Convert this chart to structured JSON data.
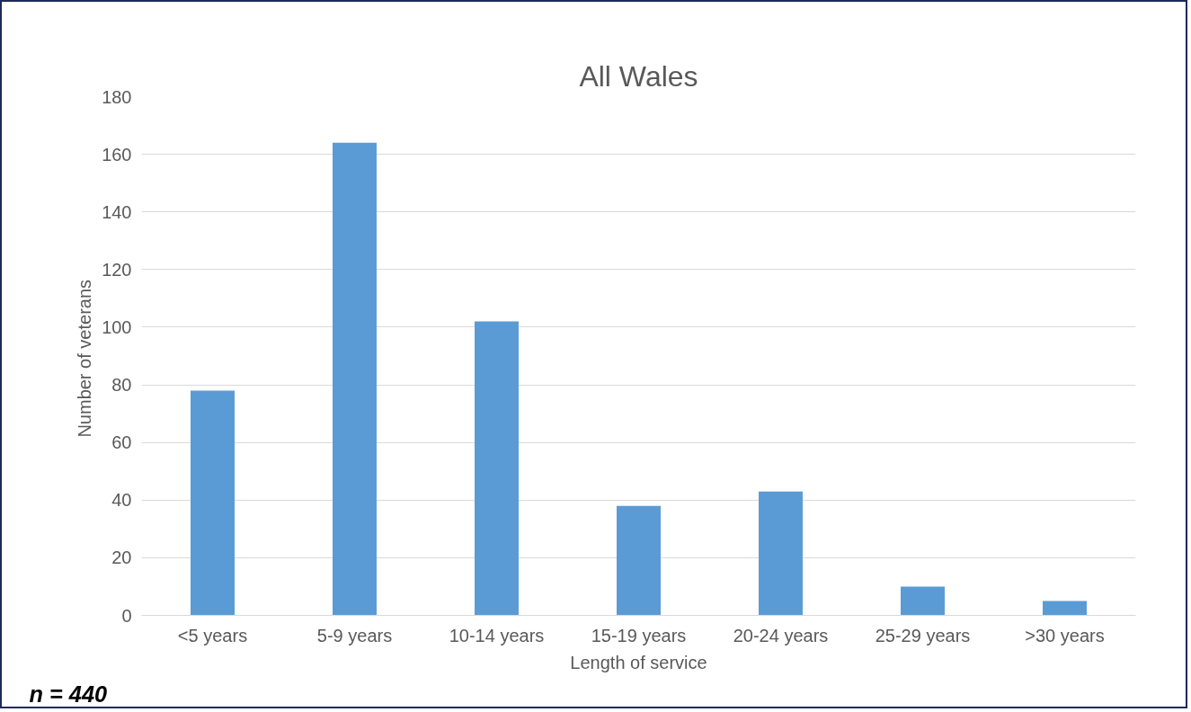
{
  "chart_data": {
    "type": "bar",
    "title": "All Wales",
    "xlabel": "Length of service",
    "ylabel": "Number  of veterans",
    "categories": [
      "<5 years",
      "5-9 years",
      "10-14 years",
      "15-19 years",
      "20-24 years",
      "25-29 years",
      ">30 years"
    ],
    "values": [
      78,
      164,
      102,
      38,
      43,
      10,
      5
    ],
    "color": "#5b9bd5",
    "ylim": [
      0,
      180
    ],
    "yticks": [
      0,
      20,
      40,
      60,
      80,
      100,
      120,
      140,
      160,
      180
    ],
    "grid": "y",
    "annotations": [
      "n = 440"
    ]
  }
}
